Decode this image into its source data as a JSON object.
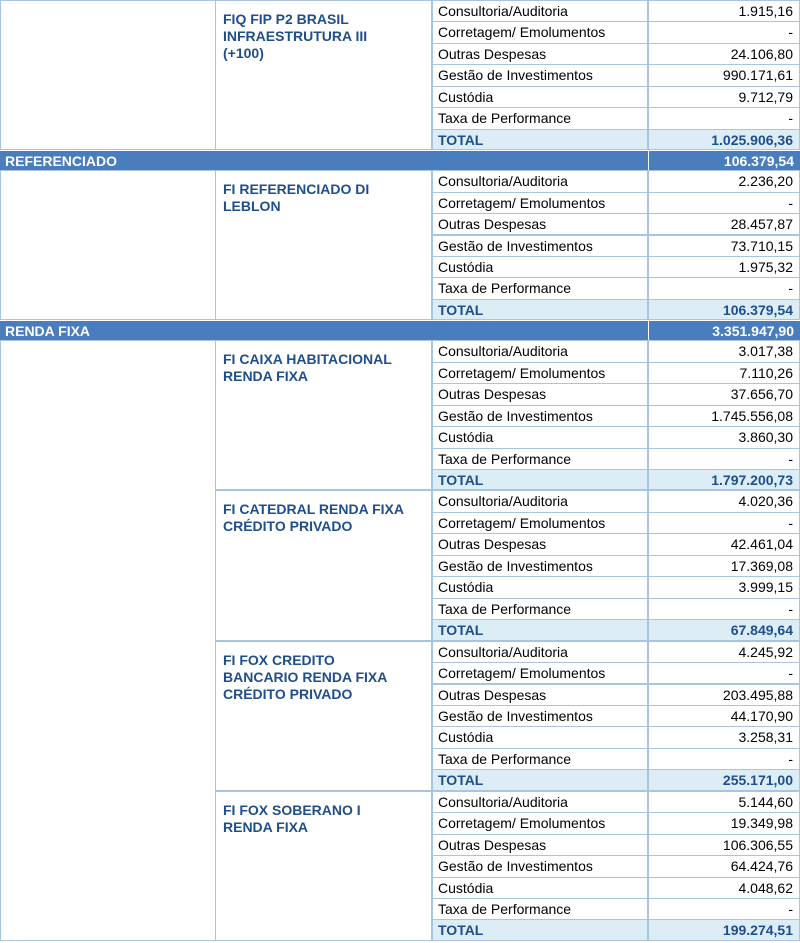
{
  "blocks": [
    {
      "funds": [
        {
          "name_lines": [
            "FIQ FIP P2 BRASIL",
            "INFRAESTRUTURA III",
            "(+100)"
          ],
          "items": [
            [
              "Consultoria/Auditoria",
              "1.915,16"
            ],
            [
              "Corretagem/ Emolumentos",
              "-"
            ],
            [
              "Outras Despesas",
              "24.106,80"
            ],
            [
              "Gestão de Investimentos",
              "990.171,61"
            ],
            [
              "Custódia",
              "9.712,79"
            ],
            [
              "Taxa de Performance",
              "-"
            ]
          ],
          "total_label": "TOTAL",
          "total": "1.025.906,36"
        }
      ]
    },
    {
      "section": "REFERENCIADO",
      "section_total": "106.379,54",
      "funds": [
        {
          "name_lines": [
            "FI REFERENCIADO DI",
            "LEBLON"
          ],
          "items": [
            [
              "Consultoria/Auditoria",
              "2.236,20"
            ],
            [
              "Corretagem/ Emolumentos",
              "-"
            ],
            [
              "Outras Despesas",
              "28.457,87"
            ],
            [
              "Gestão de Investimentos",
              "73.710,15"
            ],
            [
              "Custódia",
              "1.975,32"
            ],
            [
              "Taxa de Performance",
              "-"
            ]
          ],
          "total_label": "TOTAL",
          "total": "106.379,54"
        }
      ]
    },
    {
      "section": "RENDA FIXA",
      "section_total": "3.351.947,90",
      "funds": [
        {
          "name_lines": [
            "FI CAIXA HABITACIONAL",
            "RENDA FIXA"
          ],
          "items": [
            [
              "Consultoria/Auditoria",
              "3.017,38"
            ],
            [
              "Corretagem/ Emolumentos",
              "7.110,26"
            ],
            [
              "Outras Despesas",
              "37.656,70"
            ],
            [
              "Gestão de Investimentos",
              "1.745.556,08"
            ],
            [
              "Custódia",
              "3.860,30"
            ],
            [
              "Taxa de Performance",
              "-"
            ]
          ],
          "total_label": "TOTAL",
          "total": "1.797.200,73"
        },
        {
          "name_lines": [
            "FI CATEDRAL RENDA FIXA",
            "CRÉDITO PRIVADO"
          ],
          "items": [
            [
              "Consultoria/Auditoria",
              "4.020,36"
            ],
            [
              "Corretagem/ Emolumentos",
              "-"
            ],
            [
              "Outras Despesas",
              "42.461,04"
            ],
            [
              "Gestão de Investimentos",
              "17.369,08"
            ],
            [
              "Custódia",
              "3.999,15"
            ],
            [
              "Taxa de Performance",
              "-"
            ]
          ],
          "total_label": "TOTAL",
          "total": "67.849,64"
        },
        {
          "name_lines": [
            "FI FOX CREDITO",
            "BANCARIO RENDA FIXA",
            "CRÉDITO PRIVADO"
          ],
          "items": [
            [
              "Consultoria/Auditoria",
              "4.245,92"
            ],
            [
              "Corretagem/ Emolumentos",
              "-"
            ],
            [
              "Outras Despesas",
              "203.495,88"
            ],
            [
              "Gestão de Investimentos",
              "44.170,90"
            ],
            [
              "Custódia",
              "3.258,31"
            ],
            [
              "Taxa de Performance",
              "-"
            ]
          ],
          "total_label": "TOTAL",
          "total": "255.171,00"
        },
        {
          "name_lines": [
            "FI FOX SOBERANO I",
            "RENDA FIXA"
          ],
          "items": [
            [
              "Consultoria/Auditoria",
              "5.144,60"
            ],
            [
              "Corretagem/ Emolumentos",
              "19.349,98"
            ],
            [
              "Outras Despesas",
              "106.306,55"
            ],
            [
              "Gestão de Investimentos",
              "64.424,76"
            ],
            [
              "Custódia",
              "4.048,62"
            ],
            [
              "Taxa de Performance",
              "-"
            ]
          ],
          "total_label": "TOTAL",
          "total": "199.274,51"
        }
      ]
    }
  ]
}
